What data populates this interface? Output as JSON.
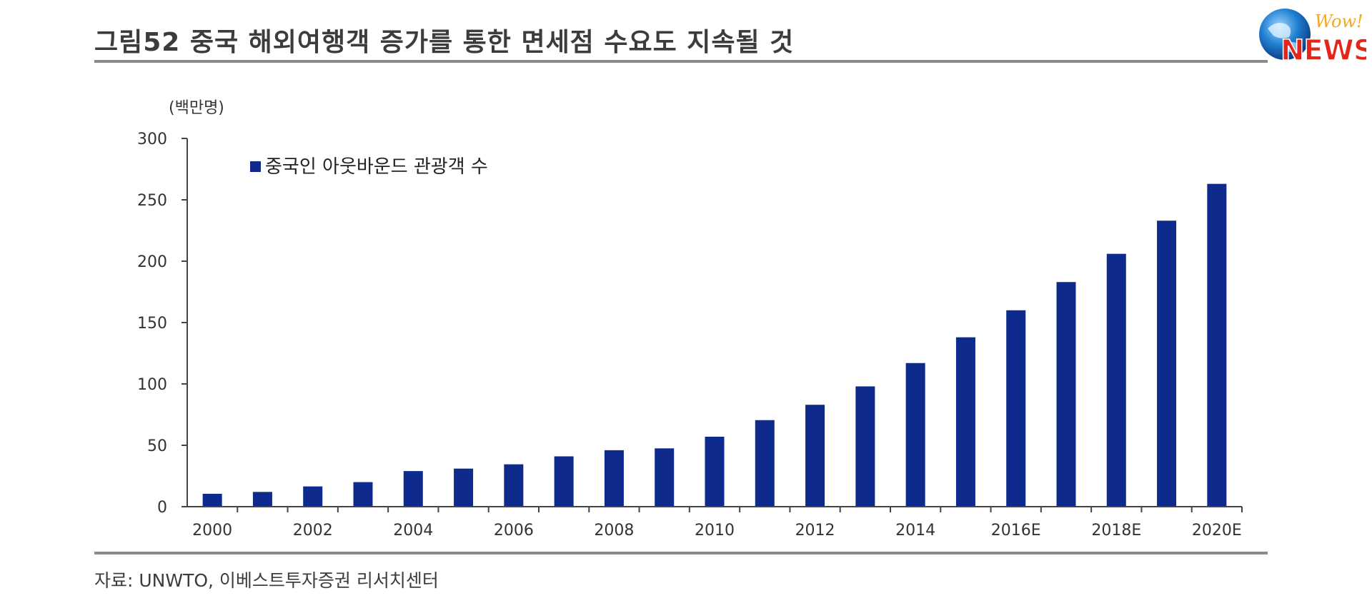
{
  "header": {
    "title": "그림52 중국 해외여행객 증가를 통한 면세점 수요도 지속될 것",
    "logo_text_top": "Wow!",
    "logo_text_main": "NEWS"
  },
  "footer": {
    "source": "자료: UNWTO, 이베스트투자증권 리서치센터"
  },
  "colors": {
    "bar": "#0d2a8c",
    "rule": "#8a8a8a",
    "logo_red": "#e1261c",
    "logo_blue": "#1f7fd1",
    "logo_gold": "#f2a81d"
  },
  "chart_data": {
    "type": "bar",
    "unit_label": "(백만명)",
    "legend": "중국인 아웃바운드 관광객 수",
    "legend_position": "top-left",
    "ylim": [
      0,
      300
    ],
    "yticks": [
      0,
      50,
      100,
      150,
      200,
      250,
      300
    ],
    "grid": false,
    "categories": [
      "2000",
      "2001",
      "2002",
      "2003",
      "2004",
      "2005",
      "2006",
      "2007",
      "2008",
      "2009",
      "2010",
      "2011",
      "2012",
      "2013",
      "2014",
      "2015",
      "2016E",
      "2017E",
      "2018E",
      "2019E",
      "2020E"
    ],
    "xtick_labels": [
      "2000",
      "",
      "2002",
      "",
      "2004",
      "",
      "2006",
      "",
      "2008",
      "",
      "2010",
      "",
      "2012",
      "",
      "2014",
      "",
      "2016E",
      "",
      "2018E",
      "",
      "2020E"
    ],
    "series": [
      {
        "name": "중국인 아웃바운드 관광객 수",
        "values": [
          10.5,
          12,
          16.5,
          20,
          29,
          31,
          34.5,
          41,
          46,
          47.5,
          57,
          70.5,
          83,
          98,
          117,
          138,
          160,
          183,
          206,
          233,
          263
        ]
      }
    ]
  }
}
